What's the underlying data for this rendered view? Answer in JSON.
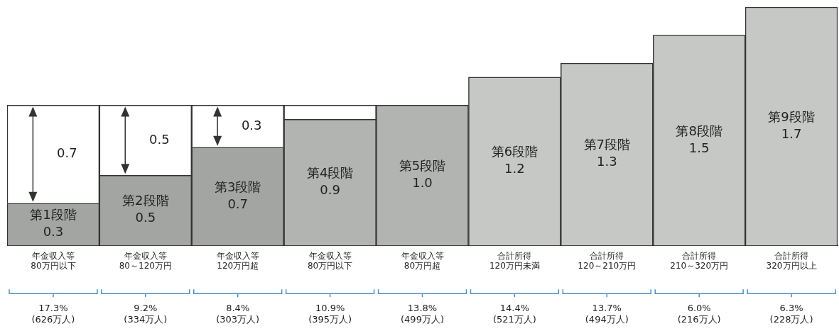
{
  "chart_data": {
    "type": "bar",
    "stacked": true,
    "categories": [
      "年金収入等\n80万円以下",
      "年金収入等\n80～120万円",
      "年金収入等\n120万円超",
      "年金収入等\n80万円以下",
      "年金収入等\n80万円超",
      "合計所得\n120万円未満",
      "合計所得\n120～210万円",
      "合計所得\n210～320万円",
      "合計所得\n320万円以上"
    ],
    "series": [
      {
        "values": [
          0.3,
          0.5,
          0.7,
          0.9,
          1.0,
          1.2,
          1.3,
          1.5,
          1.7
        ],
        "colors": [
          "#a3a5a2",
          "#a3a5a2",
          "#a3a5a2",
          "#b2b4b1",
          "#b2b4b1",
          "#c6c8c5",
          "#c6c8c5",
          "#c6c8c5",
          "#c6c8c5"
        ],
        "value_labels": [
          "第1段階\n0.3",
          "第2段階\n0.5",
          "第3段階\n0.7",
          "第4段階\n0.9",
          "第5段階\n1.0",
          "第6段階\n1.2",
          "第7段階\n1.3",
          "第8段階\n1.5",
          "第9段階\n1.7"
        ]
      },
      {
        "type": "bar",
        "color": "#ffffff",
        "values": [
          0.7,
          0.5,
          0.3,
          0.1,
          null,
          null,
          null,
          null,
          null
        ],
        "value_labels": [
          "0.7",
          "0.5",
          "0.3",
          null,
          null,
          null,
          null,
          null,
          null
        ]
      }
    ],
    "annotations": [
      "17.3%\n(626万人)",
      "9.2%\n(334万人)",
      "8.4%\n(303万人)",
      "10.9%\n(395万人)",
      "13.8%\n(499万人)",
      "14.4%\n(521万人)",
      "13.7%\n(494万人)",
      "6.0%\n(216万人)",
      "6.3%\n(228万人)"
    ],
    "tick_labels": "x",
    "legend": false,
    "grid": false
  }
}
